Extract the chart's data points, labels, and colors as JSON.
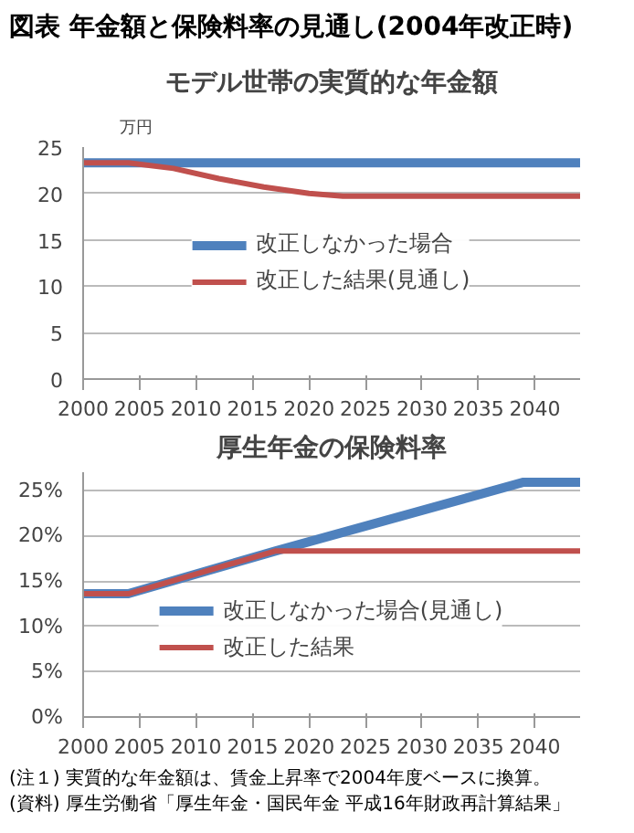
{
  "chart_data": [
    {
      "type": "line",
      "title": "図表 年金額と保険料率の見通し(2004年改正時)",
      "subtitle": "モデル世帯の実質的な年金額",
      "ylabel": "万円",
      "xlim": [
        2000,
        2044
      ],
      "xticks": [
        2000,
        2005,
        2010,
        2015,
        2020,
        2025,
        2030,
        2035,
        2040
      ],
      "ylim": [
        0,
        25
      ],
      "yticks": [
        0,
        5,
        10,
        15,
        20,
        25
      ],
      "grid": "y",
      "legend": "center",
      "series": [
        {
          "name": "改正しなかった場合",
          "color": "#4f81bd",
          "x": [
            2000,
            2044
          ],
          "values": [
            23.3,
            23.3
          ]
        },
        {
          "name": "改正した結果(見通し)",
          "color": "#c0504d",
          "x": [
            2000,
            2004,
            2008,
            2012,
            2016,
            2020,
            2023,
            2044
          ],
          "values": [
            23.3,
            23.3,
            22.7,
            21.6,
            20.7,
            20.0,
            19.7,
            19.7
          ]
        }
      ]
    },
    {
      "type": "line",
      "title": "厚生年金の保険料率",
      "xlim": [
        2000,
        2044
      ],
      "xticks": [
        2000,
        2005,
        2010,
        2015,
        2020,
        2025,
        2030,
        2035,
        2040
      ],
      "ylim": [
        0,
        27
      ],
      "yticks": [
        {
          "value": 0,
          "label": "0%"
        },
        {
          "value": 5,
          "label": "5%"
        },
        {
          "value": 10,
          "label": "10%"
        },
        {
          "value": 15,
          "label": "15%"
        },
        {
          "value": 20,
          "label": "20%"
        },
        {
          "value": 25,
          "label": "25%"
        }
      ],
      "grid": "y",
      "legend": "bottom",
      "series": [
        {
          "name": "改正しなかった場合(見通し)",
          "color": "#4f81bd",
          "x": [
            2000,
            2004,
            2017,
            2039,
            2044
          ],
          "values": [
            13.6,
            13.6,
            18.3,
            25.9,
            25.9
          ]
        },
        {
          "name": "改正した結果",
          "color": "#c0504d",
          "x": [
            2000,
            2004,
            2017,
            2044
          ],
          "values": [
            13.6,
            13.6,
            18.3,
            18.3
          ]
        }
      ],
      "annotations": [
        "(注１) 実質的な年金額は、賃金上昇率で2004年度ベースに換算。",
        "(資料) 厚生労働省「厚生年金・国民年金 平成16年財政再計算結果」"
      ]
    }
  ]
}
